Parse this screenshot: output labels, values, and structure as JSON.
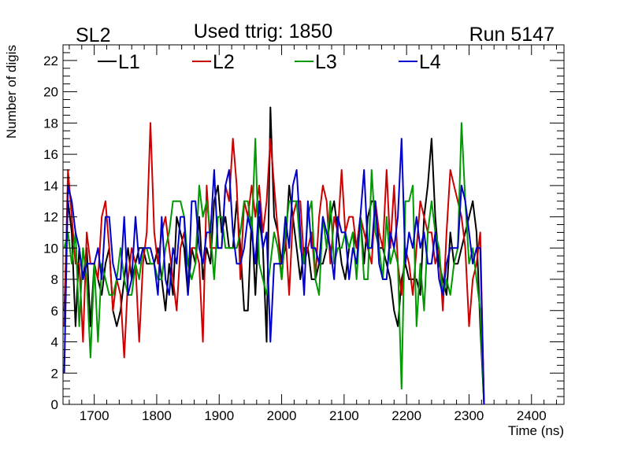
{
  "chart_data": {
    "type": "line",
    "title_left": "SL2",
    "title_center": "Used ttrig: 1850",
    "title_right": "Run 5147",
    "xlabel": "Time (ns)",
    "ylabel": "Number of digis",
    "xlim": [
      1650,
      2452
    ],
    "ylim": [
      0,
      23
    ],
    "x_ticks": [
      1700,
      1800,
      1900,
      2000,
      2100,
      2200,
      2300,
      2400
    ],
    "y_ticks": [
      0,
      2,
      4,
      6,
      8,
      10,
      12,
      14,
      16,
      18,
      20,
      22
    ],
    "x_start": 1652,
    "x_step": 6,
    "legend_position": "top",
    "series": [
      {
        "name": "L1",
        "color": "#000000",
        "values": [
          6,
          13,
          11,
          5,
          10,
          8,
          10,
          5,
          9,
          8,
          7,
          9,
          10,
          6,
          5,
          6,
          8,
          10,
          8,
          9,
          10,
          10,
          9,
          9,
          9,
          10,
          8,
          6,
          9,
          7,
          12,
          11,
          10,
          7,
          10,
          9,
          12,
          8,
          10,
          9,
          13,
          14,
          11,
          12,
          10,
          10,
          13,
          10,
          6,
          6,
          12,
          7,
          12,
          10,
          4,
          19,
          12,
          11,
          9,
          10,
          14,
          12,
          10,
          8,
          10,
          10,
          8,
          8,
          9,
          9,
          10,
          12,
          13,
          11,
          9,
          8,
          10,
          11,
          10,
          12,
          9,
          12,
          13,
          13,
          10,
          10,
          9,
          8,
          6,
          5,
          8,
          9,
          8,
          8,
          8,
          7,
          12,
          14,
          17,
          12,
          9,
          8,
          7,
          11,
          9,
          9,
          10,
          11,
          12,
          13,
          11,
          5,
          0
        ]
      },
      {
        "name": "L2",
        "color": "#cc0000",
        "values": [
          5,
          15,
          12,
          9,
          9,
          4,
          11,
          9,
          9,
          8,
          12,
          13,
          10,
          6,
          8,
          7,
          3,
          8,
          10,
          9,
          4,
          9,
          11,
          18,
          11,
          9,
          11,
          12,
          10,
          8,
          6,
          10,
          11,
          9,
          10,
          10,
          9,
          4,
          14,
          10,
          10,
          10,
          10,
          14,
          13,
          17,
          14,
          8,
          13,
          12,
          14,
          12,
          14,
          11,
          13,
          17,
          14,
          11,
          8,
          11,
          7,
          12,
          13,
          13,
          9,
          10,
          11,
          8,
          12,
          14,
          13,
          9,
          12,
          11,
          15,
          11,
          12,
          12,
          10,
          12,
          11,
          10,
          9,
          13,
          11,
          10,
          15,
          10,
          14,
          9,
          7,
          10,
          9,
          7,
          10,
          13,
          12,
          11,
          11,
          9,
          10,
          6,
          11,
          15,
          14,
          13,
          12,
          10,
          5,
          8,
          9,
          11,
          0
        ]
      },
      {
        "name": "L3",
        "color": "#009900",
        "values": [
          10,
          11,
          9,
          11,
          5,
          10,
          8,
          3,
          9,
          4,
          9,
          8,
          7,
          7,
          8,
          10,
          8,
          7,
          7,
          9,
          8,
          10,
          10,
          9,
          9,
          8,
          8,
          10,
          11,
          13,
          13,
          13,
          12,
          9,
          8,
          9,
          14,
          12,
          13,
          11,
          8,
          12,
          12,
          10,
          10,
          10,
          10,
          11,
          13,
          13,
          11,
          17,
          9,
          8,
          7,
          9,
          11,
          10,
          8,
          11,
          13,
          13,
          13,
          10,
          9,
          12,
          13,
          8,
          7,
          12,
          10,
          13,
          9,
          10,
          10,
          11,
          10,
          11,
          8,
          12,
          8,
          8,
          15,
          11,
          10,
          8,
          12,
          9,
          10,
          9,
          1,
          13,
          13,
          14,
          5,
          9,
          6,
          11,
          13,
          11,
          10,
          7,
          8,
          7,
          9,
          10,
          18,
          13,
          9,
          10,
          8,
          6,
          0
        ]
      },
      {
        "name": "L4",
        "color": "#0000cc",
        "values": [
          2,
          14,
          13,
          11,
          10,
          8,
          9,
          9,
          9,
          10,
          8,
          12,
          12,
          9,
          8,
          8,
          12,
          7,
          8,
          12,
          9,
          10,
          10,
          10,
          9,
          7,
          12,
          8,
          7,
          10,
          9,
          12,
          12,
          7,
          13,
          13,
          10,
          9,
          11,
          11,
          15,
          10,
          10,
          14,
          15,
          11,
          9,
          9,
          10,
          12,
          11,
          9,
          13,
          10,
          11,
          4,
          9,
          9,
          9,
          12,
          10,
          14,
          15,
          11,
          7,
          13,
          10,
          10,
          9,
          12,
          11,
          10,
          8,
          12,
          11,
          11,
          8,
          10,
          9,
          12,
          15,
          10,
          10,
          13,
          9,
          8,
          8,
          11,
          10,
          12,
          17,
          9,
          11,
          10,
          12,
          10,
          11,
          9,
          9,
          11,
          8,
          7,
          9,
          10,
          10,
          10,
          14,
          13,
          11,
          9,
          10,
          10,
          0
        ]
      }
    ]
  }
}
